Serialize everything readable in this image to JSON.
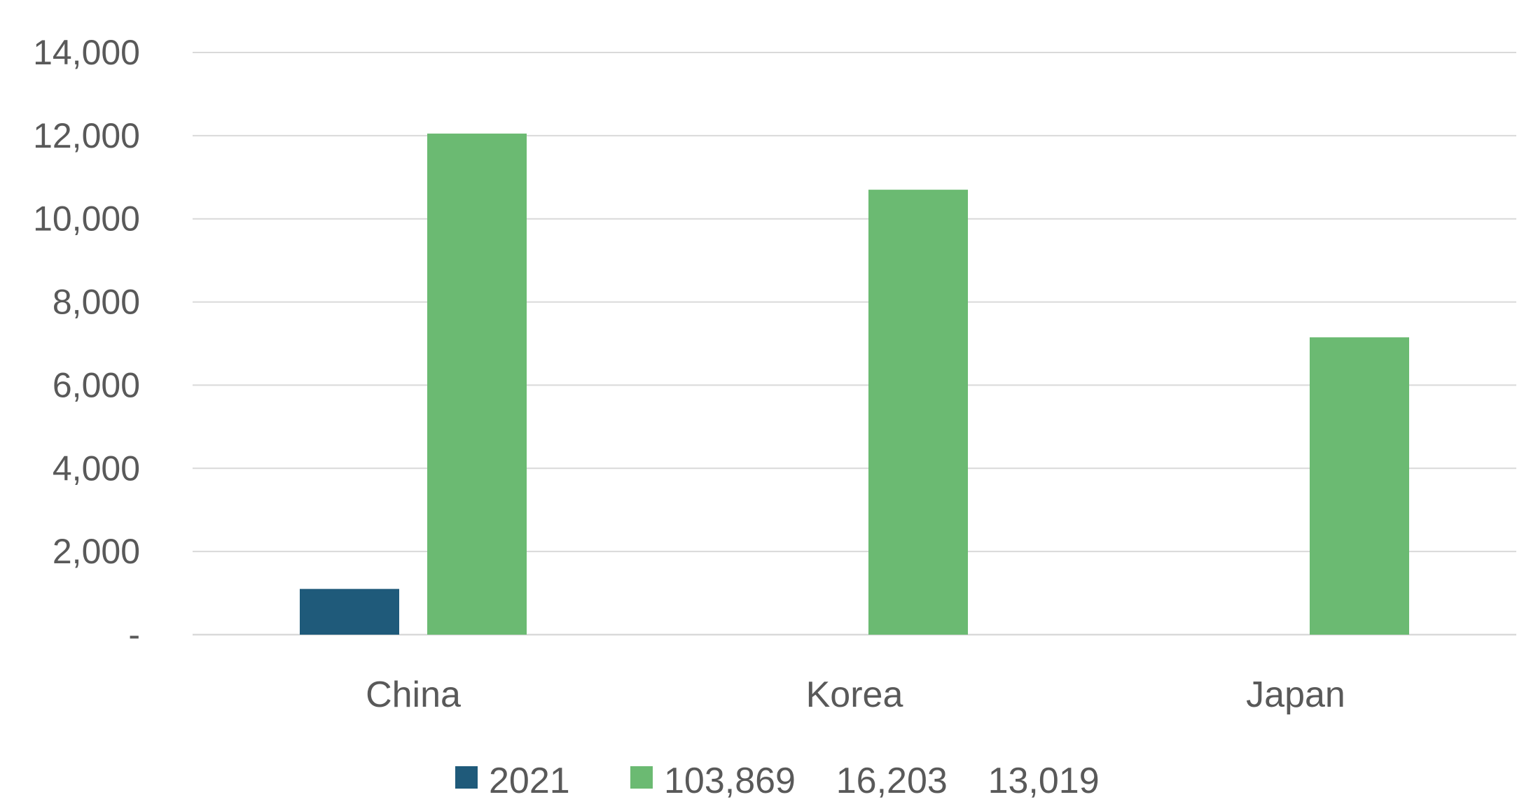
{
  "chart_data": {
    "type": "bar",
    "categories": [
      "China",
      "Korea",
      "Japan"
    ],
    "series": [
      {
        "name": "2021",
        "values": [
          1100,
          0,
          0
        ],
        "color": "#1f5a7a"
      },
      {
        "name": "103,869    16,203    13,019",
        "values": [
          12050,
          10700,
          7150
        ],
        "color": "#6bba72"
      }
    ],
    "ylim": [
      0,
      14000
    ],
    "yticks": [
      0,
      2000,
      4000,
      6000,
      8000,
      10000,
      12000,
      14000
    ],
    "ytick_labels": [
      "-",
      "2,000",
      "4,000",
      "6,000",
      "8,000",
      "10,000",
      "12,000",
      "14,000"
    ],
    "grid": true,
    "legend": "bottom",
    "title": "",
    "xlabel": "",
    "ylabel": ""
  }
}
